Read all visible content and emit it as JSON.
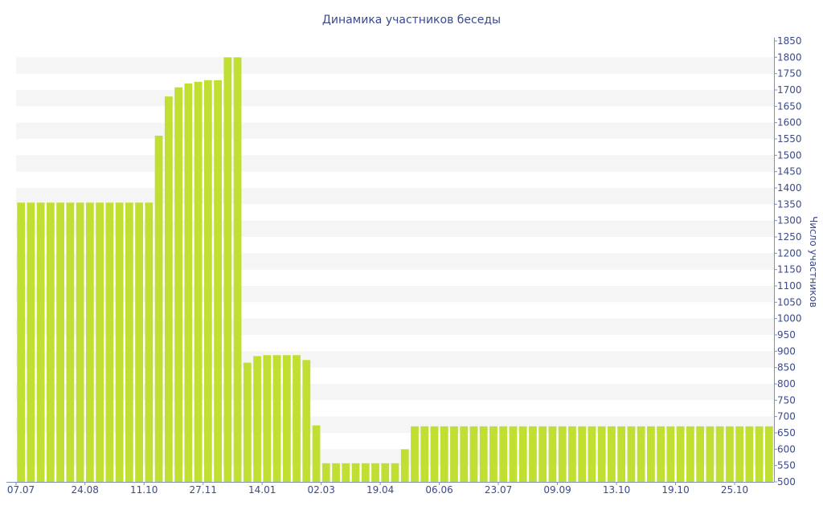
{
  "chart_data": {
    "type": "bar",
    "title": "Динамика участников беседы",
    "xlabel": "",
    "ylabel": "Число участников",
    "ylim": [
      500,
      1850
    ],
    "y_axis_side": "right",
    "y_ticks": [
      500,
      550,
      600,
      650,
      700,
      750,
      800,
      850,
      900,
      950,
      1000,
      1050,
      1100,
      1150,
      1200,
      1250,
      1300,
      1350,
      1400,
      1450,
      1500,
      1550,
      1600,
      1650,
      1700,
      1750,
      1800,
      1850
    ],
    "x_tick_labels": [
      {
        "index": 0,
        "label": "07.07"
      },
      {
        "index": 7,
        "label": "24.08"
      },
      {
        "index": 13,
        "label": "11.10"
      },
      {
        "index": 19,
        "label": "27.11"
      },
      {
        "index": 25,
        "label": "14.01"
      },
      {
        "index": 31,
        "label": "02.03"
      },
      {
        "index": 37,
        "label": "19.04"
      },
      {
        "index": 43,
        "label": "06.06"
      },
      {
        "index": 49,
        "label": "23.07"
      },
      {
        "index": 55,
        "label": "09.09"
      },
      {
        "index": 61,
        "label": "13.10"
      },
      {
        "index": 67,
        "label": "19.10"
      },
      {
        "index": 73,
        "label": "25.10"
      }
    ],
    "bar_color": "#bfe033",
    "grid": "alternating horizontal bands",
    "legend": "none",
    "values": [
      1355,
      1355,
      1355,
      1355,
      1355,
      1355,
      1355,
      1355,
      1355,
      1355,
      1355,
      1355,
      1355,
      1355,
      1560,
      1680,
      1708,
      1720,
      1725,
      1730,
      1730,
      1800,
      1800,
      865,
      885,
      888,
      888,
      888,
      888,
      873,
      673,
      557,
      557,
      557,
      557,
      557,
      557,
      557,
      557,
      600,
      670,
      670,
      670,
      670,
      670,
      670,
      670,
      670,
      670,
      670,
      670,
      670,
      670,
      670,
      670,
      670,
      670,
      670,
      670,
      670,
      670,
      670,
      670,
      670,
      670,
      670,
      670,
      670,
      670,
      670,
      670,
      670,
      670,
      670,
      670,
      670,
      670
    ]
  }
}
